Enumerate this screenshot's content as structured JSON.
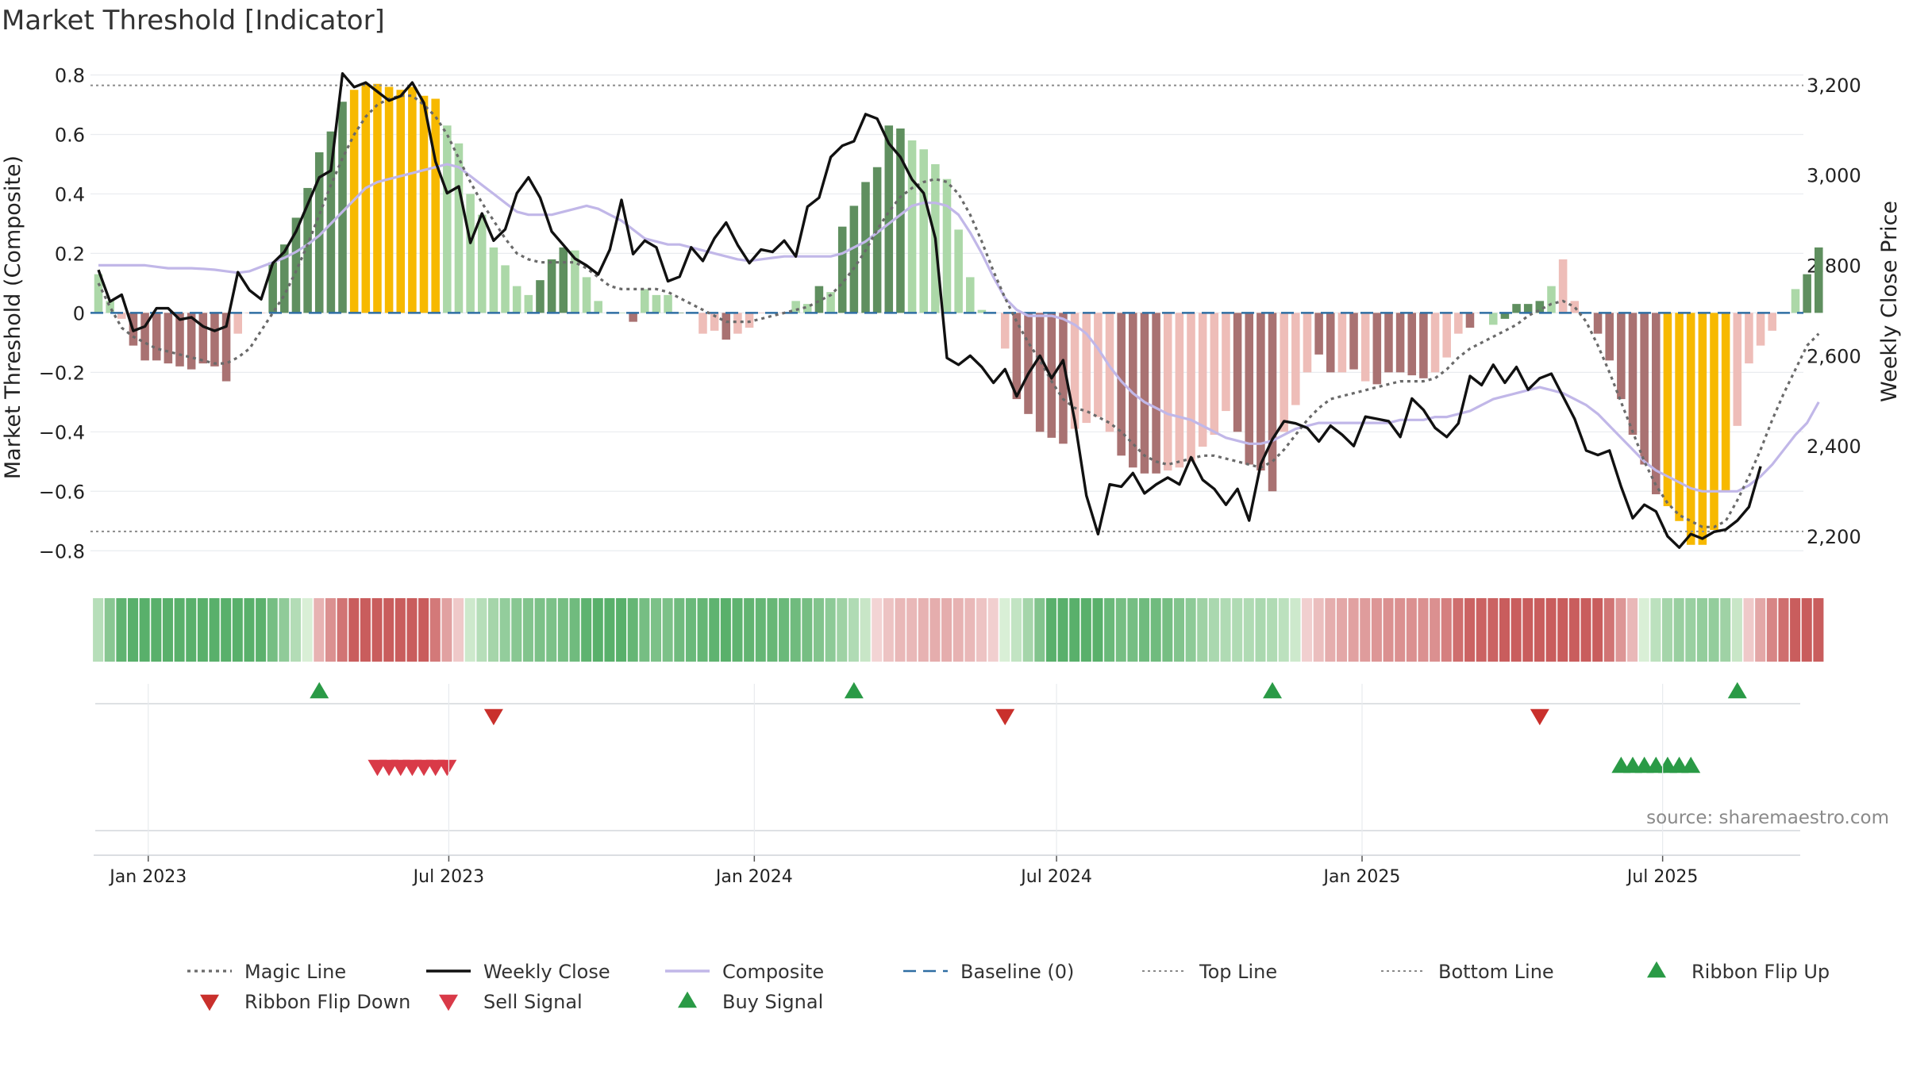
{
  "title": "Market Threshold [Indicator]",
  "source": "source: sharemaestro.com",
  "colors": {
    "strong_up": "#5f8f5f",
    "light_up": "#acd8a8",
    "strong_down": "#a97272",
    "light_down": "#eebdb8",
    "extreme": "#f7b900",
    "close": "#111111",
    "composite": "#c1b7e8",
    "magic": "#6a6a6a",
    "baseline": "#2f6ea3",
    "threshold": "#8a8a8a",
    "flip_up": "#2a9a46",
    "flip_down": "#c9302c",
    "sell": "#d93a48",
    "buy": "#2a9a46"
  },
  "chart_data": {
    "type": "bar",
    "x_dates": [
      "2022-12-02",
      "2022-12-09",
      "2022-12-16",
      "2022-12-23",
      "2022-12-30",
      "2023-01-06",
      "2023-01-13",
      "2023-01-20",
      "2023-01-27",
      "2023-02-03",
      "2023-02-10",
      "2023-02-17",
      "2023-02-24",
      "2023-03-03",
      "2023-03-10",
      "2023-03-17",
      "2023-03-24",
      "2023-03-31",
      "2023-04-07",
      "2023-04-14",
      "2023-04-21",
      "2023-04-28",
      "2023-05-05",
      "2023-05-12",
      "2023-05-19",
      "2023-05-26",
      "2023-06-02",
      "2023-06-09",
      "2023-06-16",
      "2023-06-23",
      "2023-06-30",
      "2023-07-07",
      "2023-07-14",
      "2023-07-21",
      "2023-07-28",
      "2023-08-04",
      "2023-08-11",
      "2023-08-18",
      "2023-08-25",
      "2023-09-01",
      "2023-09-08",
      "2023-09-15",
      "2023-09-22",
      "2023-09-29",
      "2023-10-06",
      "2023-10-13",
      "2023-10-20",
      "2023-10-27",
      "2023-11-03",
      "2023-11-10",
      "2023-11-17",
      "2023-11-24",
      "2023-12-01",
      "2023-12-08",
      "2023-12-15",
      "2023-12-22",
      "2023-12-29",
      "2024-01-05",
      "2024-01-12",
      "2024-01-19",
      "2024-01-26",
      "2024-02-02",
      "2024-02-09",
      "2024-02-16",
      "2024-02-23",
      "2024-03-01",
      "2024-03-08",
      "2024-03-15",
      "2024-03-22",
      "2024-03-29",
      "2024-04-05",
      "2024-04-12",
      "2024-04-19",
      "2024-04-26",
      "2024-05-03",
      "2024-05-10",
      "2024-05-17",
      "2024-05-24",
      "2024-05-31",
      "2024-06-07",
      "2024-06-14",
      "2024-06-21",
      "2024-06-28",
      "2024-07-05",
      "2024-07-12",
      "2024-07-19",
      "2024-07-26",
      "2024-08-02",
      "2024-08-09",
      "2024-08-16",
      "2024-08-23",
      "2024-08-30",
      "2024-09-06",
      "2024-09-13",
      "2024-09-20",
      "2024-09-27",
      "2024-10-04",
      "2024-10-11",
      "2024-10-18",
      "2024-10-25",
      "2024-11-01",
      "2024-11-08",
      "2024-11-15",
      "2024-11-22",
      "2024-11-29",
      "2024-12-06",
      "2024-12-13",
      "2024-12-20",
      "2024-12-27",
      "2025-01-03",
      "2025-01-10",
      "2025-01-17",
      "2025-01-24",
      "2025-01-31",
      "2025-02-07",
      "2025-02-14",
      "2025-02-21",
      "2025-02-28",
      "2025-03-07",
      "2025-03-14",
      "2025-03-21",
      "2025-03-28",
      "2025-04-04",
      "2025-04-11",
      "2025-04-18",
      "2025-04-25",
      "2025-05-02",
      "2025-05-09",
      "2025-05-16",
      "2025-05-23",
      "2025-05-30",
      "2025-06-06",
      "2025-06-13",
      "2025-06-20",
      "2025-06-27",
      "2025-07-04",
      "2025-07-11",
      "2025-07-18",
      "2025-07-25",
      "2025-08-01",
      "2025-08-08",
      "2025-08-15",
      "2025-08-22",
      "2025-08-29",
      "2025-09-05",
      "2025-09-12",
      "2025-09-19"
    ],
    "composite": [
      0.13,
      0.04,
      -0.02,
      -0.11,
      -0.16,
      -0.16,
      -0.17,
      -0.18,
      -0.19,
      -0.17,
      -0.18,
      -0.23,
      -0.07,
      0.0,
      0.0,
      0.17,
      0.23,
      0.32,
      0.42,
      0.54,
      0.61,
      0.71,
      0.75,
      0.77,
      0.77,
      0.76,
      0.75,
      0.76,
      0.73,
      0.72,
      0.63,
      0.57,
      0.4,
      0.33,
      0.22,
      0.16,
      0.09,
      0.06,
      0.11,
      0.18,
      0.22,
      0.21,
      0.12,
      0.04,
      0.0,
      0.0,
      -0.03,
      0.08,
      0.06,
      0.06,
      0.0,
      0.0,
      -0.07,
      -0.06,
      -0.09,
      -0.07,
      -0.05,
      0.0,
      0.0,
      0.0,
      0.04,
      0.03,
      0.09,
      0.07,
      0.29,
      0.36,
      0.44,
      0.49,
      0.63,
      0.62,
      0.58,
      0.55,
      0.5,
      0.45,
      0.28,
      0.12,
      0.01,
      0.0,
      -0.12,
      -0.29,
      -0.34,
      -0.4,
      -0.42,
      -0.44,
      -0.39,
      -0.37,
      -0.35,
      -0.4,
      -0.48,
      -0.52,
      -0.54,
      -0.54,
      -0.53,
      -0.52,
      -0.5,
      -0.45,
      -0.41,
      -0.33,
      -0.4,
      -0.51,
      -0.53,
      -0.6,
      -0.4,
      -0.31,
      -0.2,
      -0.14,
      -0.2,
      -0.2,
      -0.19,
      -0.23,
      -0.24,
      -0.2,
      -0.2,
      -0.21,
      -0.22,
      -0.2,
      -0.15,
      -0.07,
      -0.05,
      0.0,
      -0.04,
      -0.02,
      0.03,
      0.03,
      0.04,
      0.09,
      0.18,
      0.04,
      0.0,
      -0.07,
      -0.16,
      -0.29,
      -0.41,
      -0.51,
      -0.61,
      -0.65,
      -0.7,
      -0.78,
      -0.78,
      -0.73,
      -0.6,
      -0.38,
      -0.17,
      -0.11,
      -0.06,
      0.0,
      0.08,
      0.13,
      0.22
    ],
    "bar_class": [
      "lu",
      "lu",
      "ld",
      "sd",
      "sd",
      "sd",
      "sd",
      "sd",
      "sd",
      "sd",
      "sd",
      "sd",
      "ld",
      "ld",
      "ld",
      "su",
      "su",
      "su",
      "su",
      "su",
      "su",
      "su",
      "ex",
      "ex",
      "ex",
      "ex",
      "ex",
      "ex",
      "ex",
      "ex",
      "lu",
      "lu",
      "lu",
      "lu",
      "lu",
      "lu",
      "lu",
      "lu",
      "su",
      "su",
      "su",
      "lu",
      "lu",
      "lu",
      "lu",
      "lu",
      "sd",
      "lu",
      "lu",
      "lu",
      "su",
      "lu",
      "ld",
      "ld",
      "sd",
      "ld",
      "ld",
      "ld",
      "ld",
      "ld",
      "lu",
      "lu",
      "su",
      "lu",
      "su",
      "su",
      "su",
      "su",
      "su",
      "su",
      "lu",
      "lu",
      "lu",
      "lu",
      "lu",
      "lu",
      "lu",
      "ld",
      "ld",
      "sd",
      "sd",
      "sd",
      "sd",
      "sd",
      "ld",
      "ld",
      "ld",
      "ld",
      "sd",
      "sd",
      "sd",
      "sd",
      "ld",
      "ld",
      "ld",
      "ld",
      "ld",
      "ld",
      "sd",
      "sd",
      "sd",
      "sd",
      "ld",
      "ld",
      "ld",
      "sd",
      "sd",
      "ld",
      "sd",
      "ld",
      "sd",
      "sd",
      "sd",
      "sd",
      "sd",
      "ld",
      "ld",
      "ld",
      "sd",
      "ld",
      "lu",
      "su",
      "su",
      "su",
      "su",
      "lu",
      "ld",
      "ld",
      "ld",
      "sd",
      "sd",
      "sd",
      "sd",
      "sd",
      "sd",
      "ex",
      "ex",
      "ex",
      "ex",
      "ex",
      "ex",
      "ld",
      "ld",
      "ld",
      "ld",
      "ld",
      "lu",
      "su",
      "su"
    ],
    "composite_smooth": [
      0.16,
      0.16,
      0.16,
      0.16,
      0.16,
      0.155,
      0.15,
      0.15,
      0.15,
      0.148,
      0.145,
      0.14,
      0.135,
      0.14,
      0.155,
      0.17,
      0.185,
      0.205,
      0.23,
      0.26,
      0.3,
      0.34,
      0.38,
      0.42,
      0.44,
      0.45,
      0.46,
      0.47,
      0.48,
      0.49,
      0.5,
      0.49,
      0.46,
      0.43,
      0.4,
      0.37,
      0.34,
      0.33,
      0.33,
      0.33,
      0.34,
      0.35,
      0.36,
      0.35,
      0.33,
      0.31,
      0.28,
      0.25,
      0.24,
      0.23,
      0.23,
      0.22,
      0.21,
      0.2,
      0.19,
      0.18,
      0.175,
      0.18,
      0.185,
      0.19,
      0.19,
      0.19,
      0.19,
      0.19,
      0.2,
      0.22,
      0.24,
      0.27,
      0.3,
      0.33,
      0.36,
      0.37,
      0.37,
      0.36,
      0.33,
      0.27,
      0.2,
      0.12,
      0.05,
      0.01,
      -0.01,
      -0.01,
      -0.01,
      -0.02,
      -0.04,
      -0.07,
      -0.12,
      -0.18,
      -0.23,
      -0.27,
      -0.3,
      -0.32,
      -0.34,
      -0.35,
      -0.36,
      -0.38,
      -0.4,
      -0.42,
      -0.43,
      -0.44,
      -0.44,
      -0.43,
      -0.41,
      -0.39,
      -0.38,
      -0.37,
      -0.37,
      -0.37,
      -0.37,
      -0.37,
      -0.37,
      -0.37,
      -0.36,
      -0.36,
      -0.36,
      -0.35,
      -0.35,
      -0.34,
      -0.33,
      -0.31,
      -0.29,
      -0.28,
      -0.27,
      -0.26,
      -0.25,
      -0.26,
      -0.27,
      -0.29,
      -0.31,
      -0.34,
      -0.38,
      -0.42,
      -0.46,
      -0.5,
      -0.53,
      -0.55,
      -0.57,
      -0.59,
      -0.6,
      -0.6,
      -0.6,
      -0.6,
      -0.58,
      -0.55,
      -0.51,
      -0.46,
      -0.41,
      -0.37,
      -0.3
    ],
    "magic_line": [
      0.1,
      0.02,
      -0.05,
      -0.08,
      -0.1,
      -0.12,
      -0.13,
      -0.14,
      -0.15,
      -0.16,
      -0.17,
      -0.17,
      -0.15,
      -0.12,
      -0.06,
      0.0,
      0.06,
      0.14,
      0.23,
      0.33,
      0.43,
      0.52,
      0.6,
      0.66,
      0.7,
      0.72,
      0.73,
      0.73,
      0.7,
      0.66,
      0.6,
      0.52,
      0.44,
      0.37,
      0.31,
      0.25,
      0.2,
      0.18,
      0.17,
      0.17,
      0.17,
      0.17,
      0.15,
      0.12,
      0.09,
      0.08,
      0.08,
      0.08,
      0.08,
      0.07,
      0.05,
      0.03,
      0.01,
      -0.01,
      -0.03,
      -0.03,
      -0.03,
      -0.02,
      -0.01,
      0.0,
      0.01,
      0.02,
      0.04,
      0.06,
      0.1,
      0.15,
      0.21,
      0.28,
      0.34,
      0.39,
      0.42,
      0.44,
      0.45,
      0.44,
      0.4,
      0.33,
      0.24,
      0.14,
      0.05,
      -0.03,
      -0.1,
      -0.16,
      -0.23,
      -0.29,
      -0.32,
      -0.33,
      -0.35,
      -0.37,
      -0.4,
      -0.44,
      -0.48,
      -0.5,
      -0.51,
      -0.5,
      -0.49,
      -0.48,
      -0.48,
      -0.49,
      -0.5,
      -0.51,
      -0.52,
      -0.5,
      -0.46,
      -0.41,
      -0.36,
      -0.32,
      -0.29,
      -0.28,
      -0.27,
      -0.26,
      -0.25,
      -0.24,
      -0.23,
      -0.23,
      -0.23,
      -0.22,
      -0.19,
      -0.15,
      -0.12,
      -0.1,
      -0.08,
      -0.06,
      -0.04,
      -0.01,
      0.01,
      0.03,
      0.04,
      0.02,
      -0.03,
      -0.11,
      -0.2,
      -0.3,
      -0.4,
      -0.5,
      -0.58,
      -0.64,
      -0.68,
      -0.7,
      -0.72,
      -0.72,
      -0.7,
      -0.63,
      -0.55,
      -0.46,
      -0.36,
      -0.27,
      -0.19,
      -0.11,
      -0.07
    ],
    "weekly_close": [
      2790,
      2720,
      2735,
      2655,
      2665,
      2705,
      2705,
      2680,
      2685,
      2665,
      2655,
      2665,
      2785,
      2745,
      2725,
      2805,
      2830,
      2875,
      2935,
      2995,
      3010,
      3225,
      3195,
      3205,
      3185,
      3165,
      3175,
      3205,
      3160,
      3030,
      2960,
      2975,
      2850,
      2915,
      2855,
      2880,
      2960,
      2995,
      2950,
      2875,
      2845,
      2815,
      2800,
      2780,
      2835,
      2945,
      2825,
      2855,
      2840,
      2765,
      2775,
      2840,
      2810,
      2860,
      2895,
      2845,
      2805,
      2835,
      2830,
      2855,
      2820,
      2930,
      2950,
      3040,
      3065,
      3075,
      3135,
      3125,
      3070,
      3040,
      2990,
      2960,
      2860,
      2595,
      2580,
      2600,
      2575,
      2540,
      2570,
      2510,
      2560,
      2600,
      2550,
      2590,
      2455,
      2290,
      2205,
      2315,
      2310,
      2340,
      2295,
      2315,
      2330,
      2315,
      2375,
      2325,
      2305,
      2270,
      2305,
      2235,
      2360,
      2415,
      2455,
      2450,
      2440,
      2410,
      2445,
      2425,
      2400,
      2465,
      2460,
      2455,
      2420,
      2505,
      2480,
      2440,
      2420,
      2450,
      2555,
      2535,
      2580,
      2540,
      2575,
      2525,
      2550,
      2560,
      2510,
      2460,
      2390,
      2380,
      2390,
      2310,
      2240,
      2270,
      2255,
      2200,
      2175,
      2205,
      2195,
      2210,
      2215,
      2235,
      2265,
      2355
    ],
    "left_axis": {
      "label": "Market Threshold (Composite)",
      "ticks": [
        0.8,
        0.6,
        0.4,
        0.2,
        0,
        -0.2,
        -0.4,
        -0.6,
        -0.8
      ],
      "tick_labels": [
        "0.8",
        "0.6",
        "0.4",
        "0.2",
        "0",
        "−0.2",
        "−0.4",
        "−0.6",
        "−0.8"
      ],
      "range": [
        -0.85,
        0.82
      ]
    },
    "right_axis": {
      "label": "Weekly Close Price",
      "ticks": [
        3200,
        3000,
        2800,
        2600,
        2400,
        2200
      ],
      "tick_labels": [
        "3,200",
        "3,000",
        "2,800",
        "2,600",
        "2,400",
        "2,200"
      ],
      "range": [
        2135,
        3235
      ]
    },
    "top_line": 0.765,
    "bottom_line": -0.735,
    "x_ticks": [
      {
        "date": "2023-01-01",
        "label": "Jan 2023"
      },
      {
        "date": "2023-07-01",
        "label": "Jul 2023"
      },
      {
        "date": "2024-01-01",
        "label": "Jan 2024"
      },
      {
        "date": "2024-07-01",
        "label": "Jul 2024"
      },
      {
        "date": "2025-01-01",
        "label": "Jan 2025"
      },
      {
        "date": "2025-07-01",
        "label": "Jul 2025"
      }
    ],
    "ribbon_flip_up": [
      "2023-04-14",
      "2024-03-01",
      "2024-11-08",
      "2025-08-15"
    ],
    "ribbon_flip_down": [
      "2023-07-28",
      "2024-05-31",
      "2025-04-18"
    ],
    "sell_signal": [
      "2023-05-19",
      "2023-05-26",
      "2023-06-02",
      "2023-06-09",
      "2023-06-16",
      "2023-06-23",
      "2023-06-30"
    ],
    "buy_signal": [
      "2025-06-06",
      "2025-06-13",
      "2025-06-20",
      "2025-06-27",
      "2025-07-04",
      "2025-07-11",
      "2025-07-18"
    ],
    "legend": [
      {
        "label": "Magic Line",
        "kind": "dotted",
        "color_key": "magic"
      },
      {
        "label": "Weekly Close",
        "kind": "solid",
        "color_key": "close"
      },
      {
        "label": "Composite",
        "kind": "solid-light",
        "color_key": "composite"
      },
      {
        "label": "Baseline (0)",
        "kind": "dashed",
        "color_key": "baseline"
      },
      {
        "label": "Top Line",
        "kind": "dotted-light",
        "color_key": "threshold"
      },
      {
        "label": "Bottom Line",
        "kind": "dotted-light",
        "color_key": "threshold"
      },
      {
        "label": "Ribbon Flip Up",
        "kind": "tri-up",
        "color_key": "flip_up"
      },
      {
        "label": "Ribbon Flip Down",
        "kind": "tri-down",
        "color_key": "flip_down"
      },
      {
        "label": "Sell Signal",
        "kind": "tri-down",
        "color_key": "sell"
      },
      {
        "label": "Buy Signal",
        "kind": "tri-up",
        "color_key": "buy"
      }
    ]
  }
}
